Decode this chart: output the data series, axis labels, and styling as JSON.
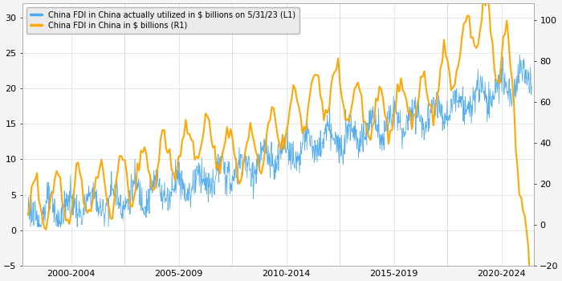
{
  "legend_line1": "China FDI in China actually utilized in $ billions on 5/31/23 (L1)",
  "legend_line2": "China FDI in China in $ billions (R1)",
  "color_blue": "#4DAAEE",
  "color_orange": "#FFA500",
  "left_ylim": [
    -5,
    32
  ],
  "right_ylim": [
    -20,
    108
  ],
  "left_yticks": [
    -5,
    0,
    5,
    10,
    15,
    20,
    25,
    30
  ],
  "right_yticks": [
    -20,
    0,
    20,
    40,
    60,
    80,
    100
  ],
  "background_color": "#f5f5f5",
  "plot_bg_color": "#ffffff",
  "grid_color": "#dddddd",
  "figsize": [
    7.0,
    3.5
  ],
  "dpi": 100
}
